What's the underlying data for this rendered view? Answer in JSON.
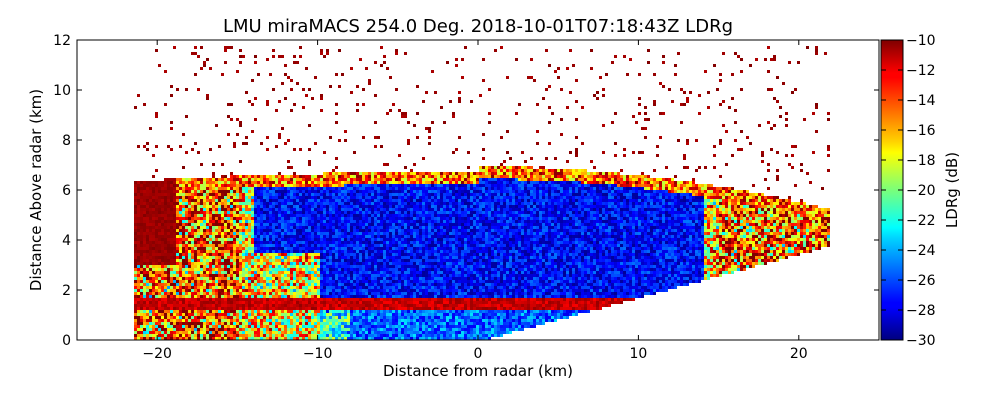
{
  "chart_data": {
    "type": "heatmap",
    "title": "LMU miraMACS 254.0 Deg. 2018-10-01T07:18:43Z  LDRg",
    "xlabel": "Distance from radar (km)",
    "ylabel": "Distance Above radar  (km)",
    "xlim": [
      -25,
      25
    ],
    "ylim": [
      0,
      12
    ],
    "xticks": [
      -20,
      -10,
      0,
      10,
      20
    ],
    "xtick_labels": [
      "−20",
      "−10",
      "0",
      "10",
      "20"
    ],
    "yticks": [
      0,
      2,
      4,
      6,
      8,
      10,
      12
    ],
    "ytick_labels": [
      "0",
      "2",
      "4",
      "6",
      "8",
      "10",
      "12"
    ],
    "colorbar": {
      "label": "LDRg (dB)",
      "range": [
        -30,
        -10
      ],
      "ticks": [
        -30,
        -28,
        -26,
        -24,
        -22,
        -20,
        -18,
        -16,
        -14,
        -12,
        -10
      ],
      "tick_labels": [
        "−30",
        "−28",
        "−26",
        "−24",
        "−22",
        "−20",
        "−18",
        "−16",
        "−14",
        "−12",
        "−10"
      ],
      "colormap": "jet"
    },
    "features": {
      "scan_sector_left_top_km": [
        -22,
        6.6
      ],
      "scan_sector_right_top_km": [
        21.8,
        5.3
      ],
      "scan_sector_right_bottom_km": [
        21.8,
        3.8
      ],
      "melting_layer_height_km": 1.5,
      "cloud_top_height_km": 7.0,
      "noise_level_dB": -10
    }
  }
}
